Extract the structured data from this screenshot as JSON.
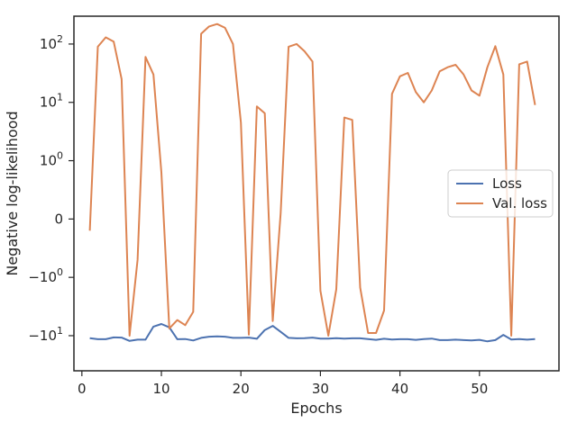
{
  "chart_data": {
    "type": "line",
    "xlabel": "Epochs",
    "ylabel": "Negative log-likelihood",
    "y_scale": "symlog",
    "xlim": [
      -1,
      60
    ],
    "ylim": [
      -40,
      300
    ],
    "grid": false,
    "legend_position": "center-right",
    "x_ticks": [
      0,
      10,
      20,
      30,
      40,
      50
    ],
    "y_ticks": [
      {
        "value": 100,
        "base": "10",
        "exp": "2",
        "sign": ""
      },
      {
        "value": 10,
        "base": "10",
        "exp": "1",
        "sign": ""
      },
      {
        "value": 1,
        "base": "10",
        "exp": "0",
        "sign": ""
      },
      {
        "value": 0,
        "base": "0",
        "exp": "",
        "sign": ""
      },
      {
        "value": -1,
        "base": "10",
        "exp": "0",
        "sign": "−"
      },
      {
        "value": -10,
        "base": "10",
        "exp": "1",
        "sign": "−"
      }
    ],
    "x": [
      1,
      2,
      3,
      4,
      5,
      6,
      7,
      8,
      9,
      10,
      11,
      12,
      13,
      14,
      15,
      16,
      17,
      18,
      19,
      20,
      21,
      22,
      23,
      24,
      25,
      26,
      27,
      28,
      29,
      30,
      31,
      32,
      33,
      34,
      35,
      36,
      37,
      38,
      39,
      40,
      41,
      42,
      43,
      44,
      45,
      46,
      47,
      48,
      49,
      50,
      51,
      52,
      53,
      54,
      55,
      56,
      57
    ],
    "series": [
      {
        "name": "Loss",
        "color": "#4c72b0",
        "values": [
          -11,
          -11.5,
          -11.5,
          -10.7,
          -10.8,
          -12.3,
          -11.7,
          -11.7,
          -7,
          -6.3,
          -7.2,
          -11.5,
          -11.4,
          -12.1,
          -10.9,
          -10.4,
          -10.3,
          -10.4,
          -10.9,
          -10.9,
          -10.8,
          -11.3,
          -8,
          -6.8,
          -8.6,
          -10.9,
          -11.1,
          -11,
          -10.8,
          -11.2,
          -11.2,
          -11,
          -11.2,
          -11.1,
          -11.1,
          -11.4,
          -11.8,
          -11.3,
          -11.6,
          -11.5,
          -11.5,
          -11.8,
          -11.4,
          -11.2,
          -11.9,
          -11.9,
          -11.7,
          -11.9,
          -12.1,
          -11.8,
          -12.5,
          -11.9,
          -9.7,
          -11.6,
          -11.4,
          -11.7,
          -11.4
        ]
      },
      {
        "name": "Val. loss",
        "color": "#dd8452",
        "values": [
          -0.2,
          90,
          130,
          110,
          25,
          -10,
          -0.7,
          60,
          30,
          0.8,
          -7.5,
          -5.4,
          -6.6,
          -3.9,
          150,
          200,
          220,
          190,
          100,
          4.5,
          -9.6,
          8.5,
          6.5,
          -5.6,
          0.1,
          90,
          100,
          75,
          50,
          -1.7,
          -10,
          -1.6,
          5.5,
          5,
          -1.5,
          -9,
          -9,
          -3.7,
          14,
          28,
          32,
          15,
          10,
          16,
          34,
          40,
          44,
          30,
          16,
          13,
          40,
          92,
          30,
          -10,
          45,
          50,
          9
        ]
      }
    ]
  }
}
